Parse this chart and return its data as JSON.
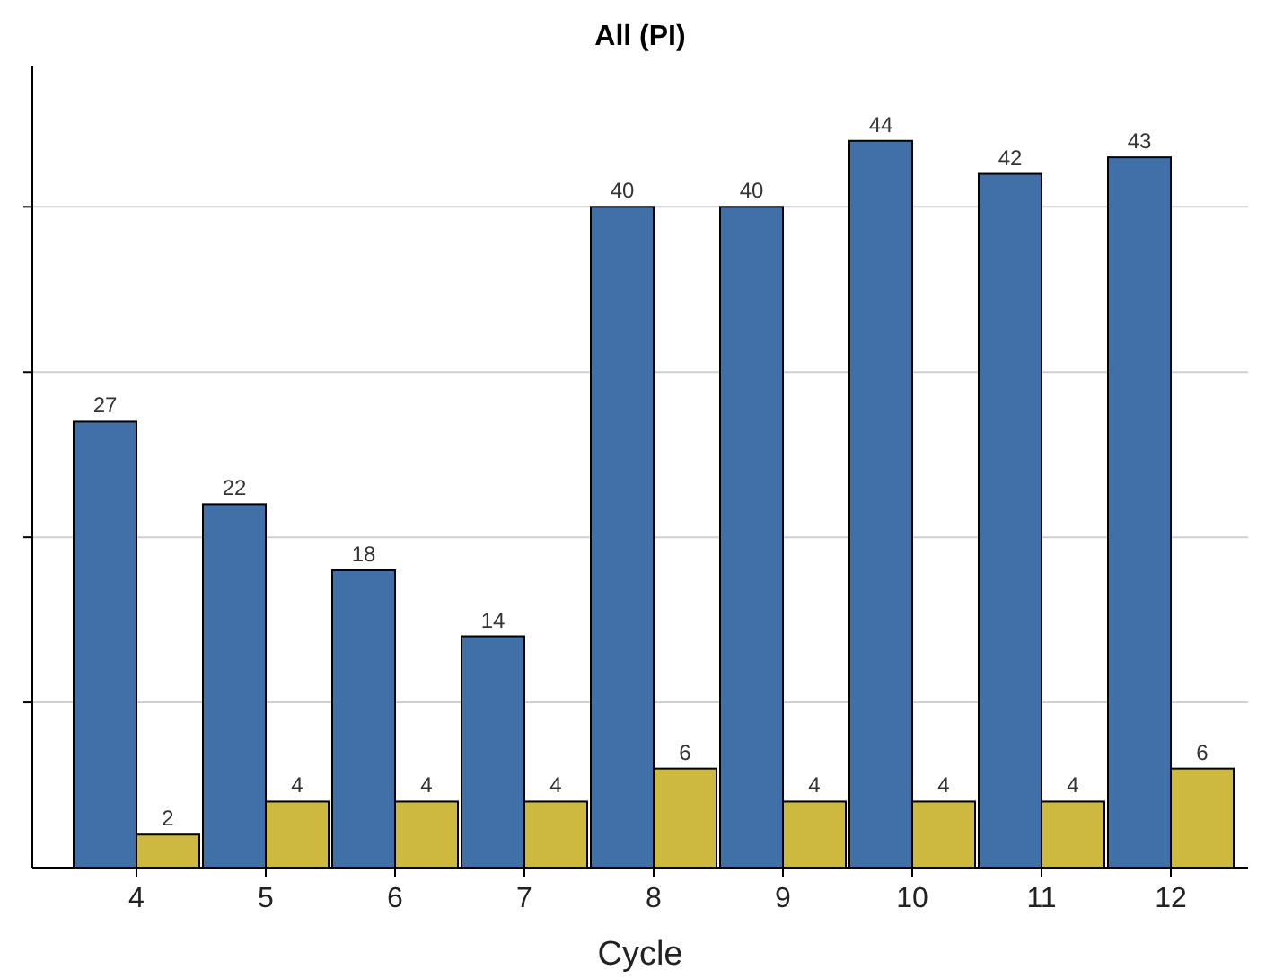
{
  "chart_data": {
    "type": "bar",
    "title": "All (PI)",
    "xlabel": "Cycle",
    "categories": [
      "4",
      "5",
      "6",
      "7",
      "8",
      "9",
      "10",
      "11",
      "12"
    ],
    "series": [
      {
        "color": "#4170a8",
        "values": [
          27,
          22,
          18,
          14,
          40,
          40,
          44,
          42,
          43
        ]
      },
      {
        "color": "#cdb840",
        "values": [
          2,
          4,
          4,
          4,
          6,
          4,
          4,
          4,
          6
        ]
      }
    ],
    "ylim": [
      0,
      48.5
    ],
    "yticks": [
      {
        "value": 10,
        "label": null
      },
      {
        "value": 20,
        "label": null
      },
      {
        "value": 30,
        "label": null
      },
      {
        "value": 40,
        "label": null
      }
    ],
    "grid": "y",
    "tick_labels": "x",
    "data_labels": true
  }
}
